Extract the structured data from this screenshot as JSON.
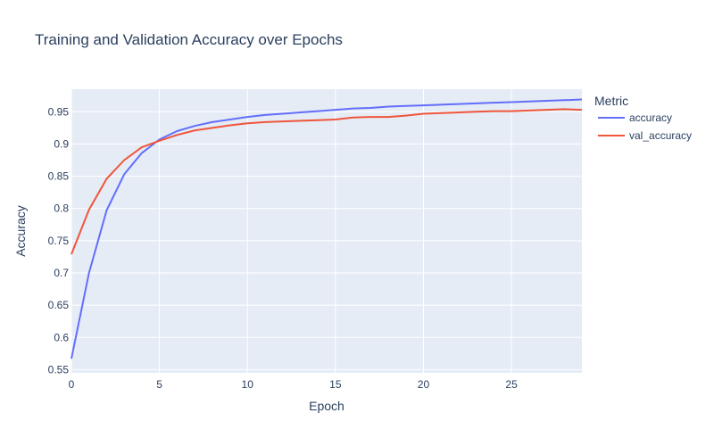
{
  "chart_data": {
    "type": "line",
    "title": "Training and Validation Accuracy over Epochs",
    "xlabel": "Epoch",
    "ylabel": "Accuracy",
    "xlim": [
      0,
      29
    ],
    "ylim": [
      0.545,
      0.985
    ],
    "x_ticks": [
      0,
      5,
      10,
      15,
      20,
      25
    ],
    "x_tick_labels": [
      "0",
      "5",
      "10",
      "15",
      "20",
      "25"
    ],
    "y_ticks": [
      0.55,
      0.6,
      0.65,
      0.7,
      0.75,
      0.8,
      0.85,
      0.9,
      0.95
    ],
    "y_tick_labels": [
      "0.55",
      "0.6",
      "0.65",
      "0.7",
      "0.75",
      "0.8",
      "0.85",
      "0.9",
      "0.95"
    ],
    "grid": true,
    "legend": {
      "title": "Metric",
      "placement": "right"
    },
    "x": [
      0,
      1,
      2,
      3,
      4,
      5,
      6,
      7,
      8,
      9,
      10,
      11,
      12,
      13,
      14,
      15,
      16,
      17,
      18,
      19,
      20,
      21,
      22,
      23,
      24,
      25,
      26,
      27,
      28,
      29
    ],
    "series": [
      {
        "name": "accuracy",
        "color": "#636efa",
        "values": [
          0.567,
          0.7,
          0.797,
          0.853,
          0.886,
          0.907,
          0.92,
          0.928,
          0.934,
          0.938,
          0.942,
          0.945,
          0.947,
          0.949,
          0.951,
          0.953,
          0.955,
          0.956,
          0.958,
          0.959,
          0.96,
          0.961,
          0.962,
          0.963,
          0.964,
          0.965,
          0.966,
          0.967,
          0.968,
          0.969
        ]
      },
      {
        "name": "val_accuracy",
        "color": "#ef553b",
        "values": [
          0.729,
          0.798,
          0.846,
          0.875,
          0.895,
          0.905,
          0.914,
          0.921,
          0.925,
          0.929,
          0.932,
          0.934,
          0.935,
          0.936,
          0.937,
          0.938,
          0.941,
          0.942,
          0.942,
          0.944,
          0.947,
          0.948,
          0.949,
          0.95,
          0.951,
          0.951,
          0.952,
          0.953,
          0.954,
          0.953
        ]
      }
    ]
  }
}
